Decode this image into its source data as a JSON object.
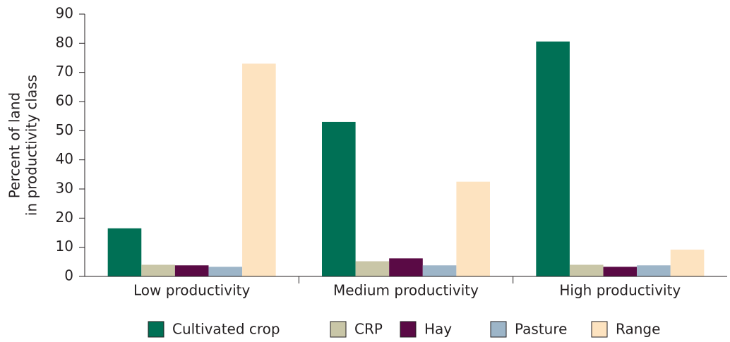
{
  "chart_data": {
    "type": "bar",
    "ylabel": [
      "Percent of land",
      "in productivity class"
    ],
    "categories": [
      "Low productivity",
      "Medium productivity",
      "High productivity"
    ],
    "series": [
      {
        "name": "Cultivated crop",
        "color": "#007055",
        "values": [
          16.5,
          53,
          80.6
        ]
      },
      {
        "name": "CRP",
        "color": "#c9c6a7",
        "values": [
          4,
          5.2,
          4
        ]
      },
      {
        "name": "Hay",
        "color": "#5a0a45",
        "values": [
          3.8,
          6.2,
          3.3
        ]
      },
      {
        "name": "Pasture",
        "color": "#9db5c8",
        "values": [
          3.3,
          3.8,
          3.8
        ]
      },
      {
        "name": "Range",
        "color": "#fde3c0",
        "values": [
          73,
          32.5,
          9.2
        ]
      }
    ],
    "ylim": [
      0,
      90
    ],
    "yticks": [
      0,
      10,
      20,
      30,
      40,
      50,
      60,
      70,
      80,
      90
    ],
    "grid": false
  }
}
